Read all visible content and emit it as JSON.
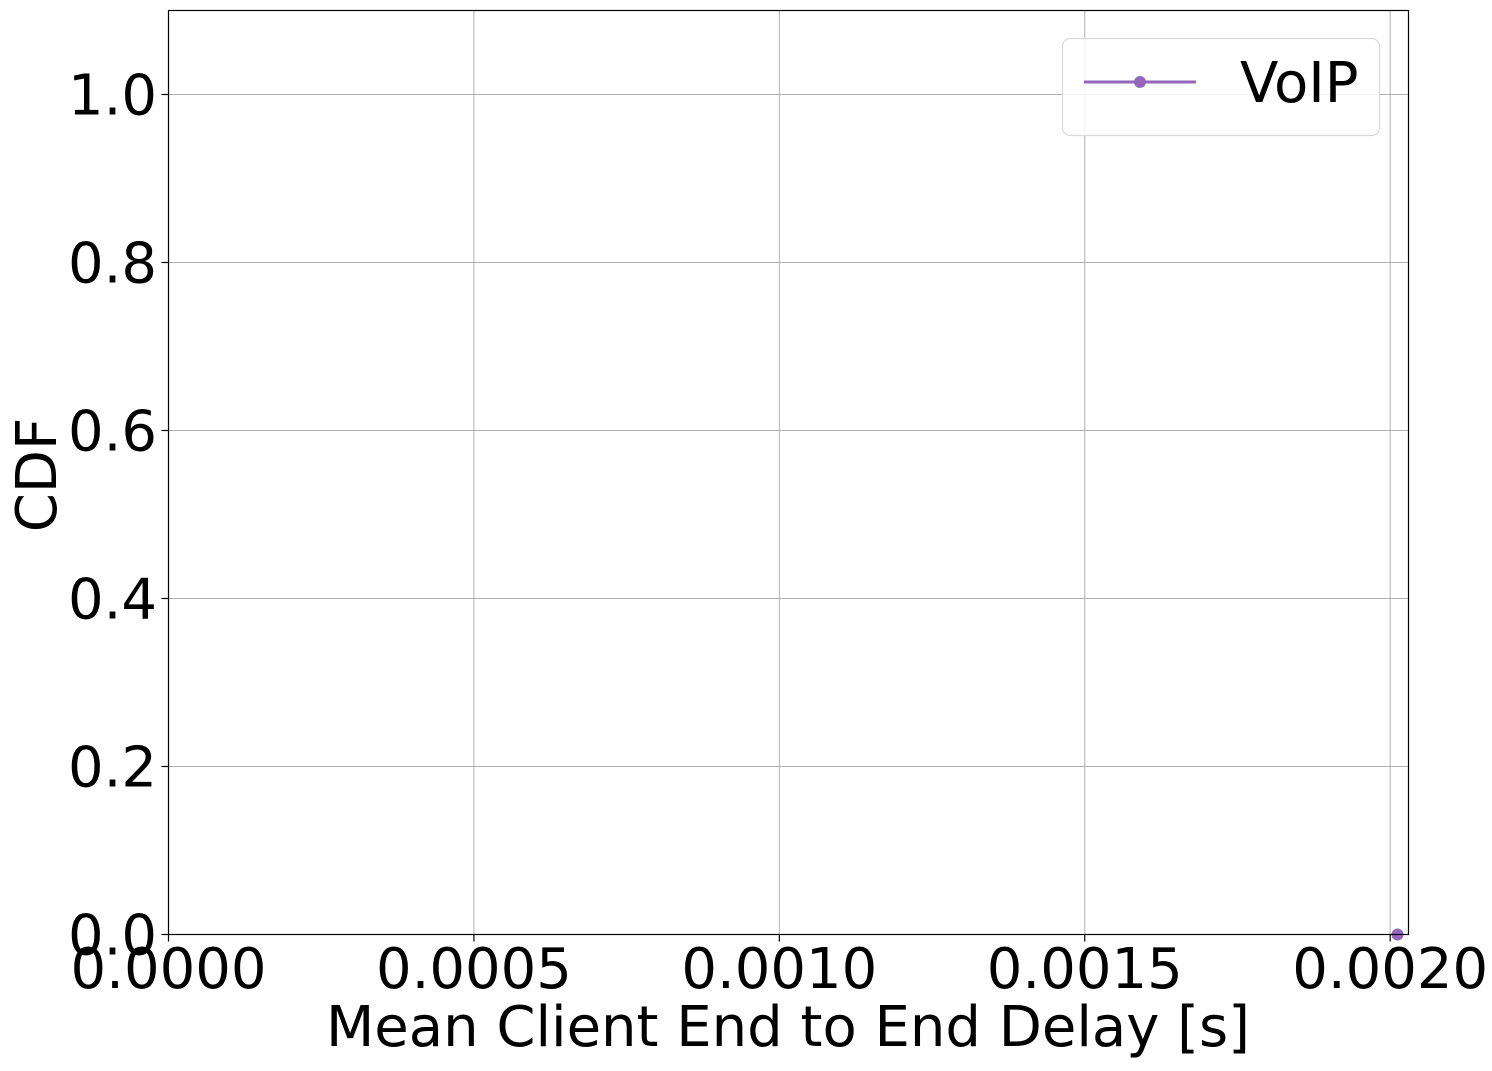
{
  "chart_data": {
    "type": "line",
    "xlabel": "Mean Client End to End Delay [s]",
    "ylabel": "CDF",
    "xlim": [
      0.0,
      0.00203
    ],
    "ylim": [
      0.0,
      1.1
    ],
    "x_ticks": [
      0.0,
      0.0005,
      0.001,
      0.0015,
      0.002
    ],
    "x_tick_labels": [
      "0.0000",
      "0.0005",
      "0.0010",
      "0.0015",
      "0.0020"
    ],
    "y_ticks": [
      0.0,
      0.2,
      0.4,
      0.6,
      0.8,
      1.0
    ],
    "y_tick_labels": [
      "0.0",
      "0.2",
      "0.4",
      "0.6",
      "0.8",
      "1.0"
    ],
    "grid": true,
    "legend_position": "top-right",
    "series": [
      {
        "name": "VoIP",
        "color": "#9467bd",
        "marker": "circle",
        "x": [
          0.002012
        ],
        "y": [
          0.0
        ]
      }
    ]
  }
}
